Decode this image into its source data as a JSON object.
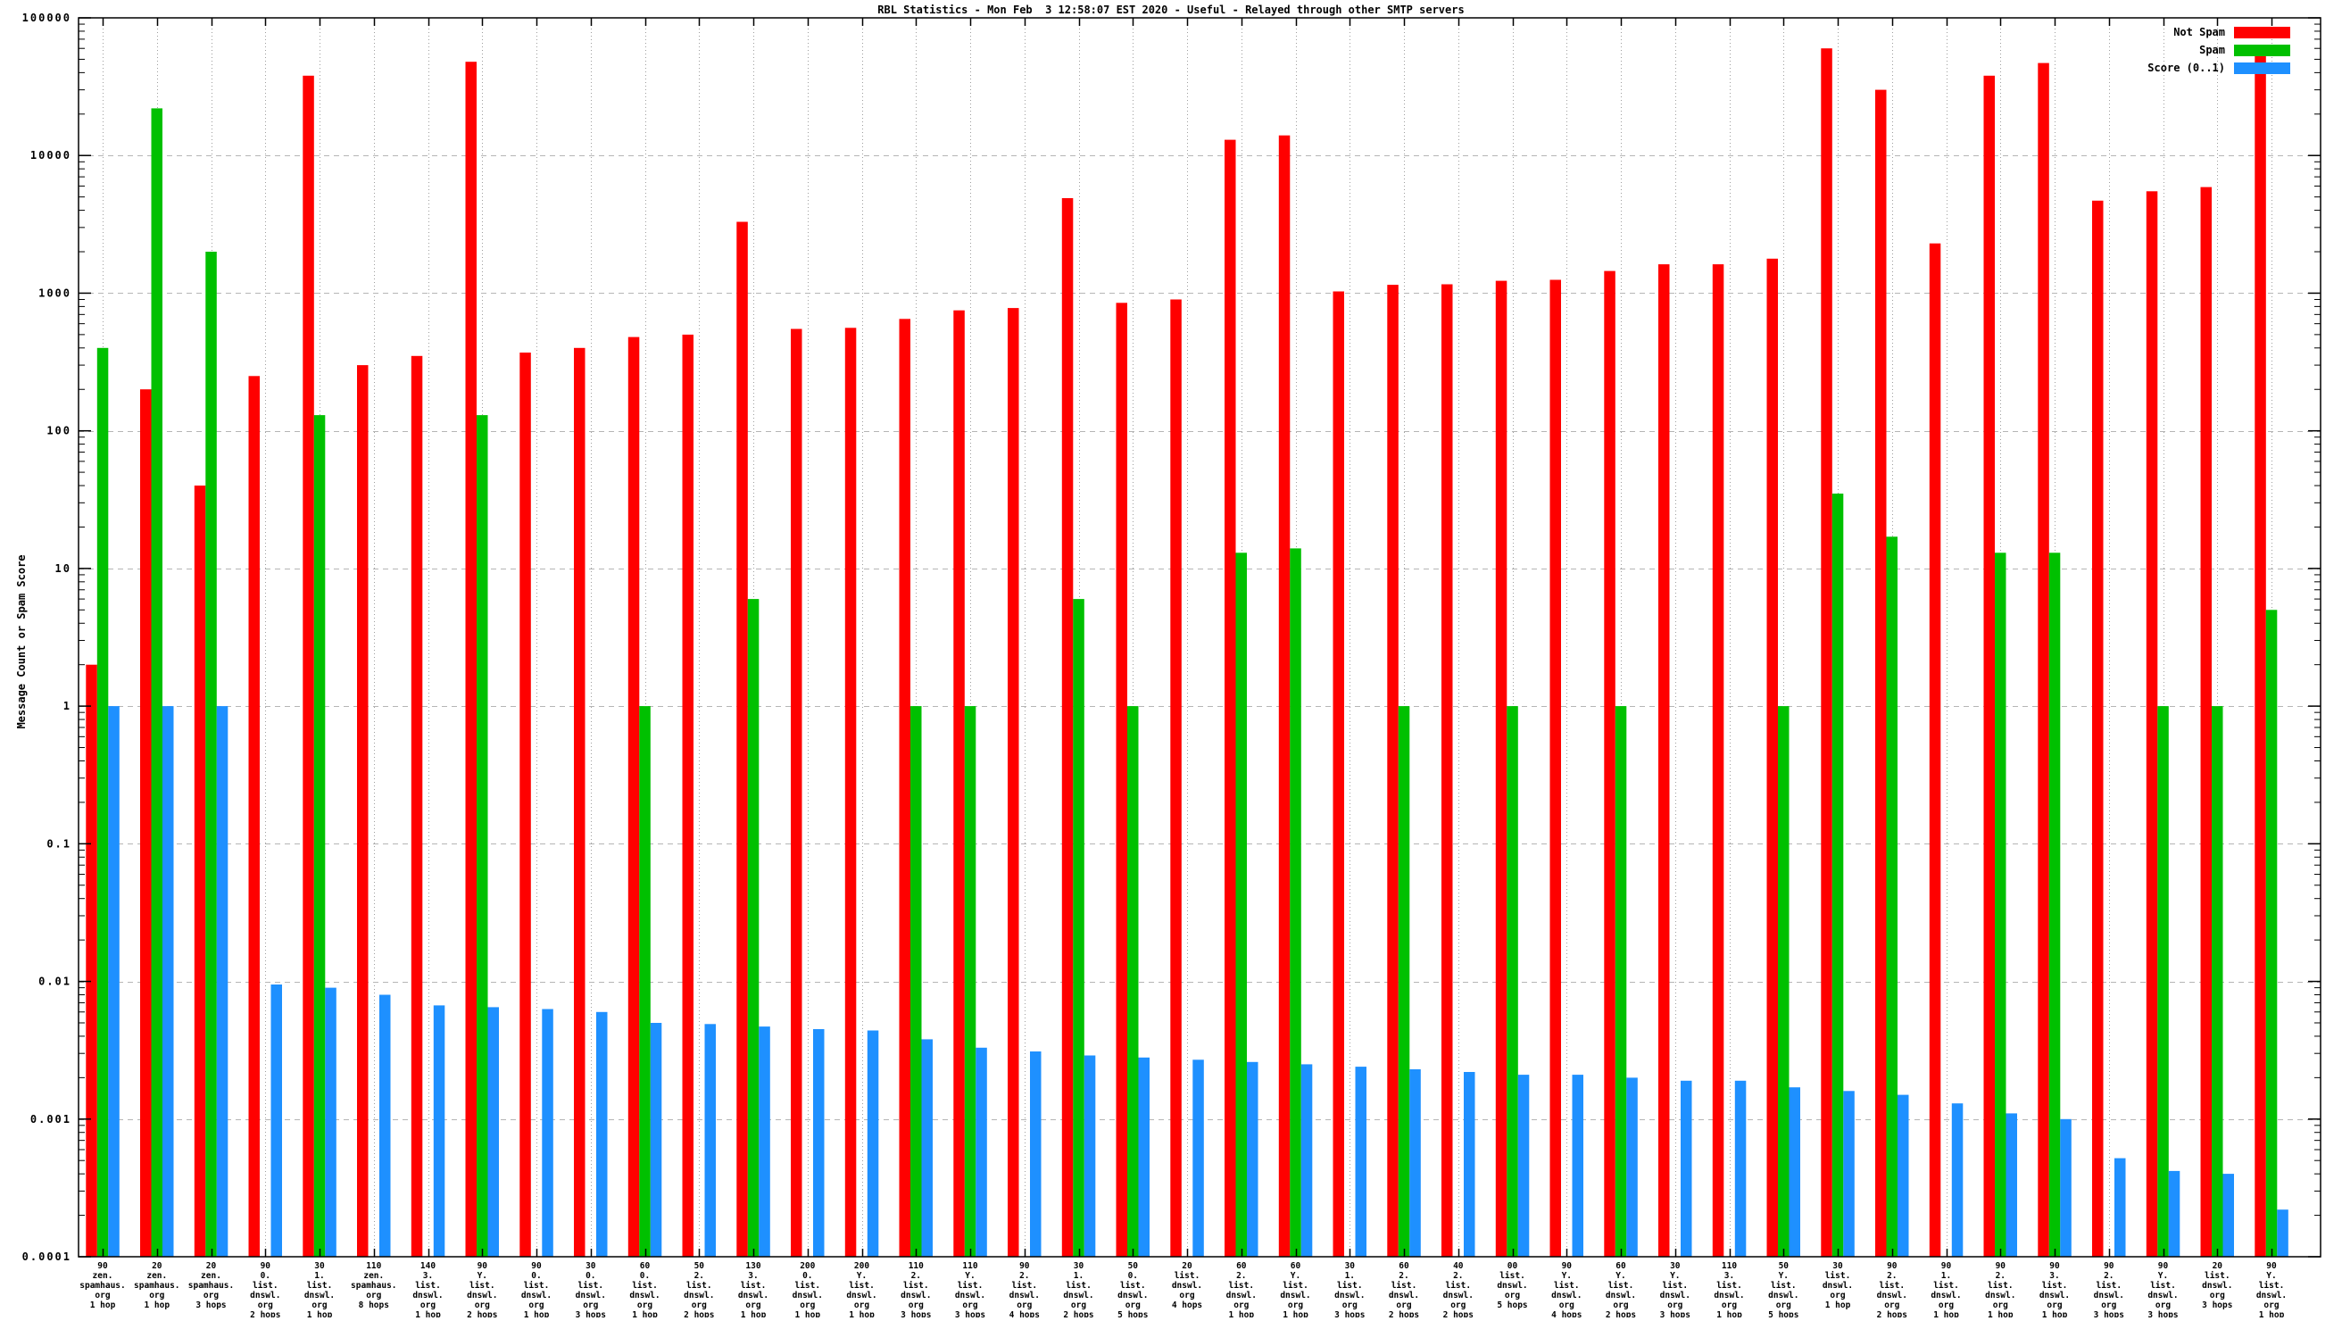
{
  "title": "RBL Statistics - Mon Feb  3 12:58:07 EST 2020 - Useful - Relayed through other SMTP servers",
  "ylabel": "Message Count or Spam Score",
  "legend": [
    {
      "label": "Not Spam",
      "color": "#ff0000"
    },
    {
      "label": "Spam",
      "color": "#00c000"
    },
    {
      "label": "Score (0..1)",
      "color": "#1e90ff"
    }
  ],
  "chart_data": {
    "type": "bar",
    "yscale": "log",
    "ylim": [
      0.0001,
      100000
    ],
    "grid": true,
    "legend_position": "top-right",
    "title": "RBL Statistics - Mon Feb  3 12:58:07 EST 2020 - Useful - Relayed through other SMTP servers",
    "xlabel": "",
    "ylabel": "Message Count or Spam Score",
    "ytick_labels": [
      "100000",
      "10000",
      "1000",
      "100",
      "10",
      "1",
      "0.1",
      "0.01",
      "0.001",
      "0.0001"
    ],
    "categories": [
      [
        "90",
        "zen.",
        "spamhaus.",
        "org",
        "1 hop"
      ],
      [
        "20",
        "zen.",
        "spamhaus.",
        "org",
        "1 hop"
      ],
      [
        "20",
        "zen.",
        "spamhaus.",
        "org",
        "3 hops"
      ],
      [
        "90",
        "0.",
        "list.",
        "dnswl.",
        "org",
        "2 hops"
      ],
      [
        "30",
        "1.",
        "list.",
        "dnswl.",
        "org",
        "1 hop"
      ],
      [
        "110",
        "zen.",
        "spamhaus.",
        "org",
        "8 hops"
      ],
      [
        "140",
        "3.",
        "list.",
        "dnswl.",
        "org",
        "1 hop"
      ],
      [
        "90",
        "Y.",
        "list.",
        "dnswl.",
        "org",
        "2 hops"
      ],
      [
        "90",
        "0.",
        "list.",
        "dnswl.",
        "org",
        "1 hop"
      ],
      [
        "30",
        "0.",
        "list.",
        "dnswl.",
        "org",
        "3 hops"
      ],
      [
        "60",
        "0.",
        "list.",
        "dnswl.",
        "org",
        "1 hop"
      ],
      [
        "50",
        "2.",
        "list.",
        "dnswl.",
        "org",
        "2 hops"
      ],
      [
        "130",
        "3.",
        "list.",
        "dnswl.",
        "org",
        "1 hop"
      ],
      [
        "200",
        "0.",
        "list.",
        "dnswl.",
        "org",
        "1 hop"
      ],
      [
        "200",
        "Y.",
        "list.",
        "dnswl.",
        "org",
        "1 hop"
      ],
      [
        "110",
        "2.",
        "list.",
        "dnswl.",
        "org",
        "3 hops"
      ],
      [
        "110",
        "Y.",
        "list.",
        "dnswl.",
        "org",
        "3 hops"
      ],
      [
        "90",
        "2.",
        "list.",
        "dnswl.",
        "org",
        "4 hops"
      ],
      [
        "30",
        "1.",
        "list.",
        "dnswl.",
        "org",
        "2 hops"
      ],
      [
        "50",
        "0.",
        "list.",
        "dnswl.",
        "org",
        "5 hops"
      ],
      [
        "20",
        "list.",
        "dnswl.",
        "org",
        "4 hops"
      ],
      [
        "60",
        "2.",
        "list.",
        "dnswl.",
        "org",
        "1 hop"
      ],
      [
        "60",
        "Y.",
        "list.",
        "dnswl.",
        "org",
        "1 hop"
      ],
      [
        "30",
        "1.",
        "list.",
        "dnswl.",
        "org",
        "3 hops"
      ],
      [
        "60",
        "2.",
        "list.",
        "dnswl.",
        "org",
        "2 hops"
      ],
      [
        "40",
        "2.",
        "list.",
        "dnswl.",
        "org",
        "2 hops"
      ],
      [
        "00",
        "list.",
        "dnswl.",
        "org",
        "5 hops"
      ],
      [
        "90",
        "Y.",
        "list.",
        "dnswl.",
        "org",
        "4 hops"
      ],
      [
        "60",
        "Y.",
        "list.",
        "dnswl.",
        "org",
        "2 hops"
      ],
      [
        "30",
        "Y.",
        "list.",
        "dnswl.",
        "org",
        "3 hops"
      ],
      [
        "110",
        "3.",
        "list.",
        "dnswl.",
        "org",
        "1 hop"
      ],
      [
        "50",
        "Y.",
        "list.",
        "dnswl.",
        "org",
        "5 hops"
      ],
      [
        "30",
        "list.",
        "dnswl.",
        "org",
        "1 hop"
      ],
      [
        "90",
        "2.",
        "list.",
        "dnswl.",
        "org",
        "2 hops"
      ],
      [
        "90",
        "1.",
        "list.",
        "dnswl.",
        "org",
        "1 hop"
      ],
      [
        "90",
        "2.",
        "list.",
        "dnswl.",
        "org",
        "1 hop"
      ],
      [
        "90",
        "3.",
        "list.",
        "dnswl.",
        "org",
        "1 hop"
      ],
      [
        "90",
        "2.",
        "list.",
        "dnswl.",
        "org",
        "3 hops"
      ],
      [
        "90",
        "Y.",
        "list.",
        "dnswl.",
        "org",
        "3 hops"
      ],
      [
        "20",
        "list.",
        "dnswl.",
        "org",
        "3 hops"
      ],
      [
        "90",
        "Y.",
        "list.",
        "dnswl.",
        "org",
        "1 hop"
      ]
    ],
    "series": [
      {
        "name": "Not Spam",
        "color": "#ff0000",
        "values": [
          2,
          200,
          40,
          250,
          38000,
          300,
          350,
          48000,
          370,
          400,
          480,
          500,
          3300,
          550,
          560,
          650,
          750,
          780,
          4900,
          850,
          900,
          13000,
          14000,
          1030,
          1150,
          1160,
          1230,
          1250,
          1450,
          1620,
          1620,
          1780,
          60000,
          30000,
          2300,
          38000,
          47000,
          4700,
          5500,
          5900,
          55000
        ]
      },
      {
        "name": "Spam",
        "color": "#00c000",
        "values": [
          400,
          22000,
          2000,
          0,
          130,
          0,
          0,
          130,
          0,
          0,
          1,
          0,
          6,
          0,
          0,
          1,
          1,
          0,
          6,
          1,
          0,
          13,
          14,
          0,
          1,
          0,
          1,
          0,
          1,
          0,
          0,
          1,
          35,
          17,
          0,
          13,
          13,
          0,
          1,
          1,
          5
        ]
      },
      {
        "name": "Score (0..1)",
        "color": "#1e90ff",
        "values": [
          1,
          1,
          1,
          0.0095,
          0.009,
          0.008,
          0.0067,
          0.0065,
          0.0063,
          0.006,
          0.005,
          0.0049,
          0.0047,
          0.0045,
          0.0044,
          0.0038,
          0.0033,
          0.0031,
          0.0029,
          0.0028,
          0.0027,
          0.0026,
          0.0025,
          0.0024,
          0.0023,
          0.0022,
          0.0021,
          0.0021,
          0.002,
          0.0019,
          0.0019,
          0.0017,
          0.0016,
          0.0015,
          0.0013,
          0.0011,
          0.001,
          0.00052,
          0.00042,
          0.0004,
          0.00022
        ]
      }
    ]
  }
}
